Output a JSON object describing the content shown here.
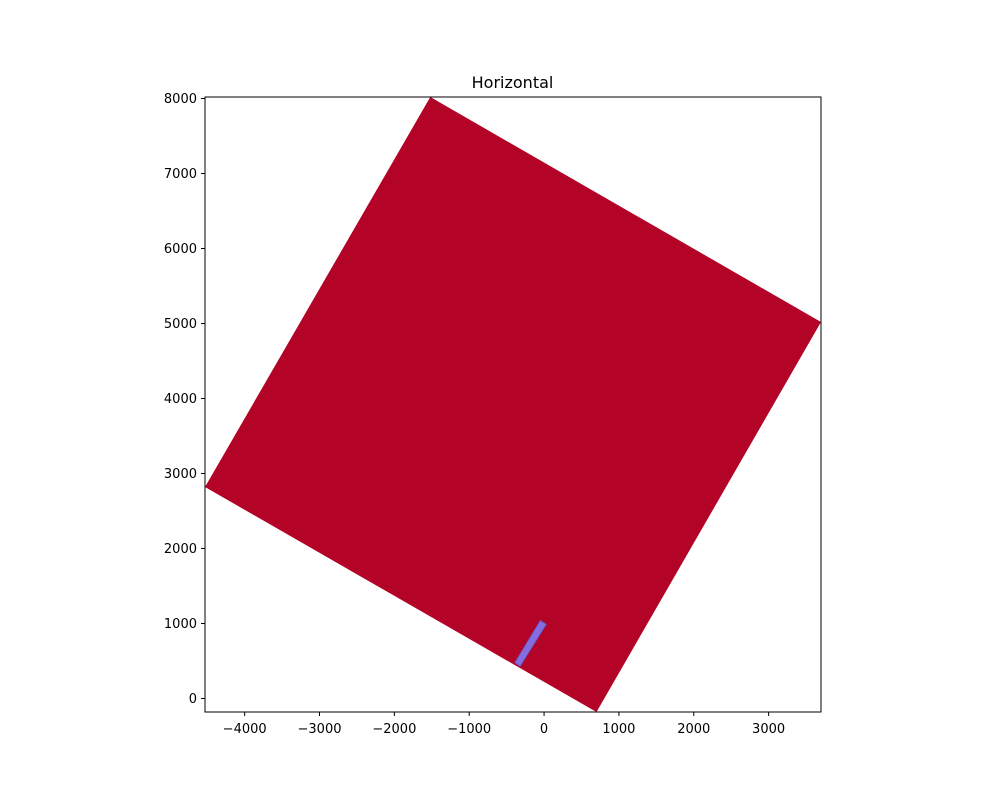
{
  "chart_data": {
    "type": "area",
    "title": "Horizontal",
    "xlabel": "",
    "ylabel": "",
    "xlim": [
      -4530,
      3700
    ],
    "ylim": [
      -180,
      8020
    ],
    "xticks": [
      -4000,
      -3000,
      -2000,
      -1000,
      0,
      1000,
      2000,
      3000
    ],
    "yticks": [
      0,
      1000,
      2000,
      3000,
      4000,
      5000,
      6000,
      7000,
      8000
    ],
    "xtick_labels": [
      "−4000",
      "−3000",
      "−2000",
      "−1000",
      "0",
      "1000",
      "2000",
      "3000"
    ],
    "ytick_labels": [
      "0",
      "1000",
      "2000",
      "3000",
      "4000",
      "5000",
      "6000",
      "7000",
      "8000"
    ],
    "grid": false,
    "shapes": [
      {
        "name": "large-square",
        "color": "#b30326",
        "vertices": [
          [
            700,
            -180
          ],
          [
            -4530,
            2820
          ],
          [
            -1520,
            8020
          ],
          [
            3700,
            5020
          ]
        ]
      },
      {
        "name": "small-rectangle",
        "color": "#7f7fff",
        "vertices": [
          [
            -320,
            430
          ],
          [
            -390,
            480
          ],
          [
            -50,
            1040
          ],
          [
            30,
            990
          ]
        ]
      }
    ]
  }
}
